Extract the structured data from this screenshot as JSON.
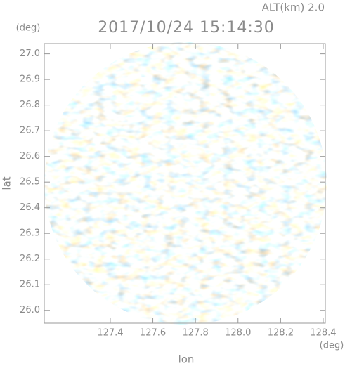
{
  "chart_data": {
    "type": "heatmap",
    "title": "2017/10/24 15:14:30",
    "subtitle": "ALT(km) 2.0",
    "x_label": "lon",
    "x_unit": "(deg)",
    "y_label": "lat",
    "y_unit": "(deg)",
    "xlim": [
      127.09,
      128.41
    ],
    "ylim": [
      25.95,
      27.04
    ],
    "xticks": [
      127.4,
      127.6,
      127.8,
      {
        "value": 128.0,
        "label": "128.0"
      },
      128.2,
      128.4
    ],
    "yticks": [
      {
        "value": 26.0,
        "label": "26.0"
      },
      26.1,
      26.2,
      26.3,
      26.4,
      26.5,
      26.6,
      26.7,
      26.8,
      26.9,
      {
        "value": 27.0,
        "label": "27.0"
      }
    ]
  }
}
